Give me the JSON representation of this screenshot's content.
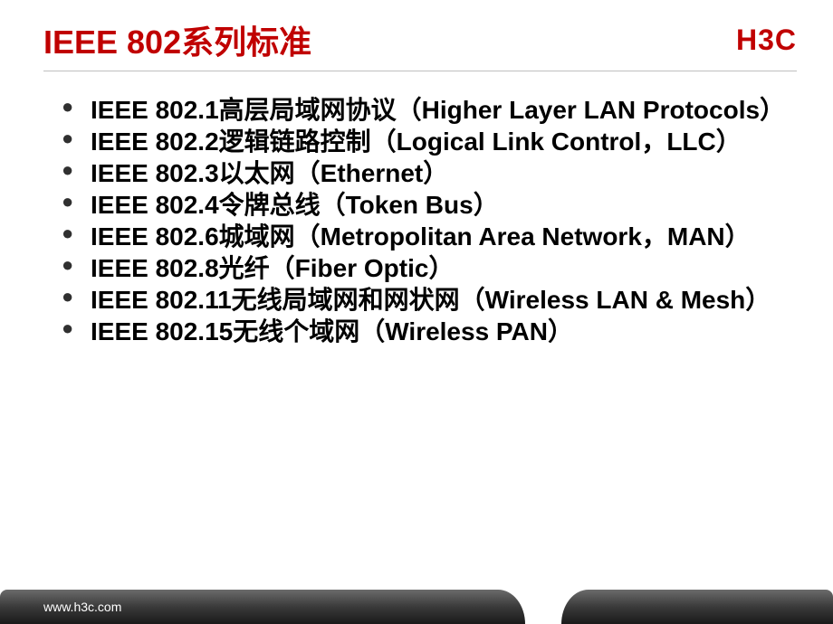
{
  "header": {
    "title": "IEEE 802系列标准",
    "logo": "H3C"
  },
  "bullets": [
    "IEEE 802.1高层局域网协议（Higher Layer LAN Protocols）",
    "IEEE 802.2逻辑链路控制（Logical Link Control，LLC）",
    "IEEE 802.3以太网（Ethernet）",
    "IEEE 802.4令牌总线（Token Bus）",
    "IEEE 802.6城域网（Metropolitan Area Network，MAN）",
    "IEEE 802.8光纤（Fiber Optic）",
    "IEEE 802.11无线局域网和网状网（Wireless LAN & Mesh）",
    "IEEE 802.15无线个域网（Wireless PAN）"
  ],
  "footer": {
    "url": "www.h3c.com"
  },
  "colors": {
    "title": "#c00000",
    "text": "#000000",
    "divider": "#bfbfbf",
    "footer_gradient_top": "#6b6b6b",
    "footer_gradient_bottom": "#1a1a1a",
    "background": "#ffffff"
  },
  "typography": {
    "title_size": 36,
    "bullet_size": 28,
    "logo_size": 32,
    "footer_size": 14
  }
}
